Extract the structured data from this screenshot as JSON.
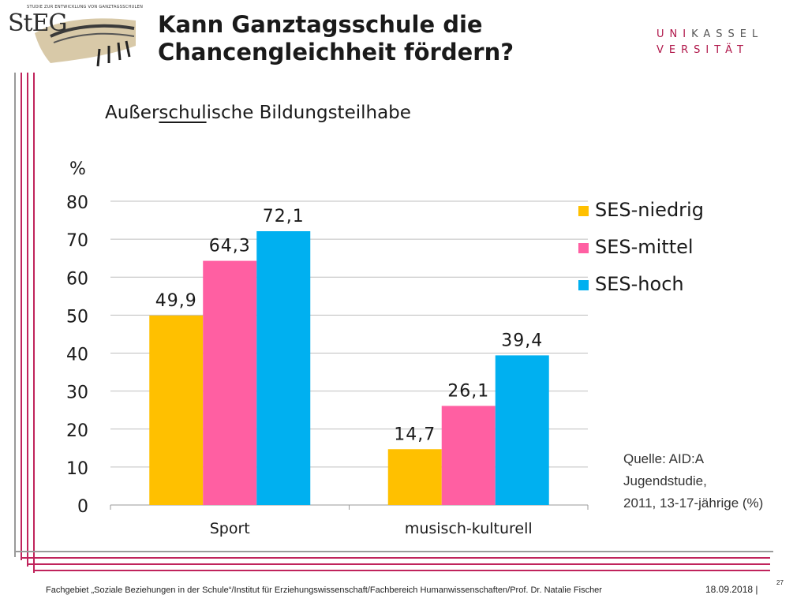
{
  "logo": {
    "tagline": "STUDIE ZUR ENTWICKLUNG VON GANZTAGSSCHULEN",
    "word": "StEG"
  },
  "header": {
    "title_line1": "Kann Ganztagsschule die",
    "title_line2": "Chancengleichheit fördern?"
  },
  "university": {
    "row1_accent": "UNI",
    "row1_rest": "KASSEL",
    "row2": "VERSITÄT"
  },
  "subtitle": {
    "part1": "Außer",
    "part2": "schul",
    "part3": "ische Bildungsteilhabe"
  },
  "unit_label": "%",
  "chart_data": {
    "type": "bar",
    "title": "Außerschulische Bildungsteilhabe",
    "ylabel": "%",
    "xlabel": "",
    "ylim": [
      0,
      80
    ],
    "yticks": [
      "0",
      "10",
      "20",
      "30",
      "40",
      "50",
      "60",
      "70",
      "80"
    ],
    "categories": [
      "Sport",
      "musisch-kulturell"
    ],
    "series": [
      {
        "name": "SES-niedrig",
        "color": "#FFC000",
        "values": [
          49.9,
          14.7
        ],
        "labels": [
          "49,9",
          "14,7"
        ]
      },
      {
        "name": "SES-mittel",
        "color": "#FF5FA2",
        "values": [
          64.3,
          26.1
        ],
        "labels": [
          "64,3",
          "26,1"
        ]
      },
      {
        "name": "SES-hoch",
        "color": "#00B0F0",
        "values": [
          72.1,
          39.4
        ],
        "labels": [
          "72,1",
          "39,4"
        ]
      }
    ],
    "grid": true,
    "legend": "top-right"
  },
  "source": {
    "line1": "Quelle: AID:A",
    "line2": "Jugendstudie,",
    "line3": "2011,  13-17-jährige (%)"
  },
  "footer": {
    "text": "Fachgebiet „Soziale Beziehungen in der Schule“/Institut für Erziehungswissenschaft/Fachbereich Humanwissenschaften/Prof. Dr. Natalie Fischer",
    "date": "18.09.2018  |",
    "page": "27"
  },
  "colors": {
    "frame_red": "#C0245C",
    "frame_grey": "#9A9A9A",
    "grid": "#BFBFBF"
  }
}
